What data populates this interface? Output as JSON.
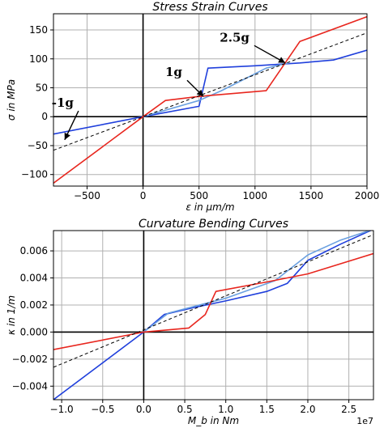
{
  "chart_data": [
    {
      "type": "line",
      "title": "Stress Strain Curves",
      "xlabel": "ε in μm/m",
      "ylabel": "σ in MPa",
      "xlim": [
        -800,
        2000
      ],
      "ylim": [
        -120,
        178
      ],
      "xticks": [
        -500,
        0,
        500,
        1000,
        1500,
        2000
      ],
      "yticks": [
        -100,
        -50,
        0,
        50,
        100,
        150
      ],
      "xtick_labels": [
        "−500",
        "0",
        "500",
        "1000",
        "1500",
        "2000"
      ],
      "ytick_labels": [
        "−100",
        "−50",
        "0",
        "50",
        "100",
        "150"
      ],
      "grid": true,
      "series": [
        {
          "color": "#1f3fdc",
          "dash": "",
          "x": [
            -800,
            0,
            500,
            580,
            1000,
            1400,
            1700,
            2000
          ],
          "y": [
            -30,
            0,
            18,
            84,
            88,
            93,
            98,
            115
          ]
        },
        {
          "color": "#6aa0e0",
          "dash": "",
          "x": [
            0,
            500,
            700,
            1100,
            1300
          ],
          "y": [
            0,
            28,
            45,
            84,
            93
          ]
        },
        {
          "color": "#e8261e",
          "dash": "",
          "x": [
            -800,
            0,
            200,
            500,
            1100,
            1400,
            2000
          ],
          "y": [
            -115,
            0,
            28,
            35,
            45,
            130,
            173
          ]
        },
        {
          "color": "#000000",
          "dash": "4,3",
          "x": [
            -800,
            2000
          ],
          "y": [
            -58,
            145
          ]
        }
      ],
      "annotations": [
        {
          "text": "-1g",
          "x": -620,
          "y": 17,
          "arrow_to": [
            -700,
            -40
          ]
        },
        {
          "text": "1g",
          "x": 350,
          "y": 70,
          "arrow_to": [
            540,
            35
          ]
        },
        {
          "text": "2.5g",
          "x": 950,
          "y": 130,
          "arrow_to": [
            1270,
            93
          ]
        }
      ]
    },
    {
      "type": "line",
      "title": "Curvature Bending Curves",
      "xlabel": "M_b in Nm",
      "ylabel": "κ in 1/m",
      "x_offset": "1e7",
      "xlim": [
        -1.1,
        2.8
      ],
      "ylim": [
        -0.005,
        0.0075
      ],
      "xticks": [
        -1.0,
        -0.5,
        0.0,
        0.5,
        1.0,
        1.5,
        2.0,
        2.5
      ],
      "yticks": [
        -0.004,
        -0.002,
        0.0,
        0.002,
        0.004,
        0.006
      ],
      "xtick_labels": [
        "−1.0",
        "−0.5",
        "0.0",
        "0.5",
        "1.0",
        "1.5",
        "2.0",
        "2.5"
      ],
      "ytick_labels": [
        "−0.004",
        "−0.002",
        "0.000",
        "0.002",
        "0.004",
        "0.006"
      ],
      "grid": true,
      "series": [
        {
          "color": "#1f3fdc",
          "dash": "",
          "x": [
            -1.1,
            0,
            0.25,
            0.6,
            1.0,
            1.5,
            1.75,
            2.0,
            2.4,
            2.8
          ],
          "y": [
            -0.005,
            0,
            0.0013,
            0.0018,
            0.0023,
            0.003,
            0.0036,
            0.0053,
            0.0065,
            0.0076
          ]
        },
        {
          "color": "#6aa0e0",
          "dash": "",
          "x": [
            0,
            0.3,
            1.0,
            1.6,
            2.0,
            2.4,
            2.8
          ],
          "y": [
            0,
            0.0014,
            0.0025,
            0.0038,
            0.0057,
            0.0068,
            0.0076
          ]
        },
        {
          "color": "#e8261e",
          "dash": "",
          "x": [
            -1.1,
            0,
            0.55,
            0.75,
            0.88,
            1.5,
            2.0,
            2.8
          ],
          "y": [
            -0.0013,
            0,
            0.0003,
            0.0013,
            0.003,
            0.0037,
            0.0043,
            0.0058
          ]
        },
        {
          "color": "#000000",
          "dash": "4,3",
          "x": [
            -1.1,
            2.8
          ],
          "y": [
            -0.0026,
            0.0072
          ]
        }
      ]
    }
  ]
}
